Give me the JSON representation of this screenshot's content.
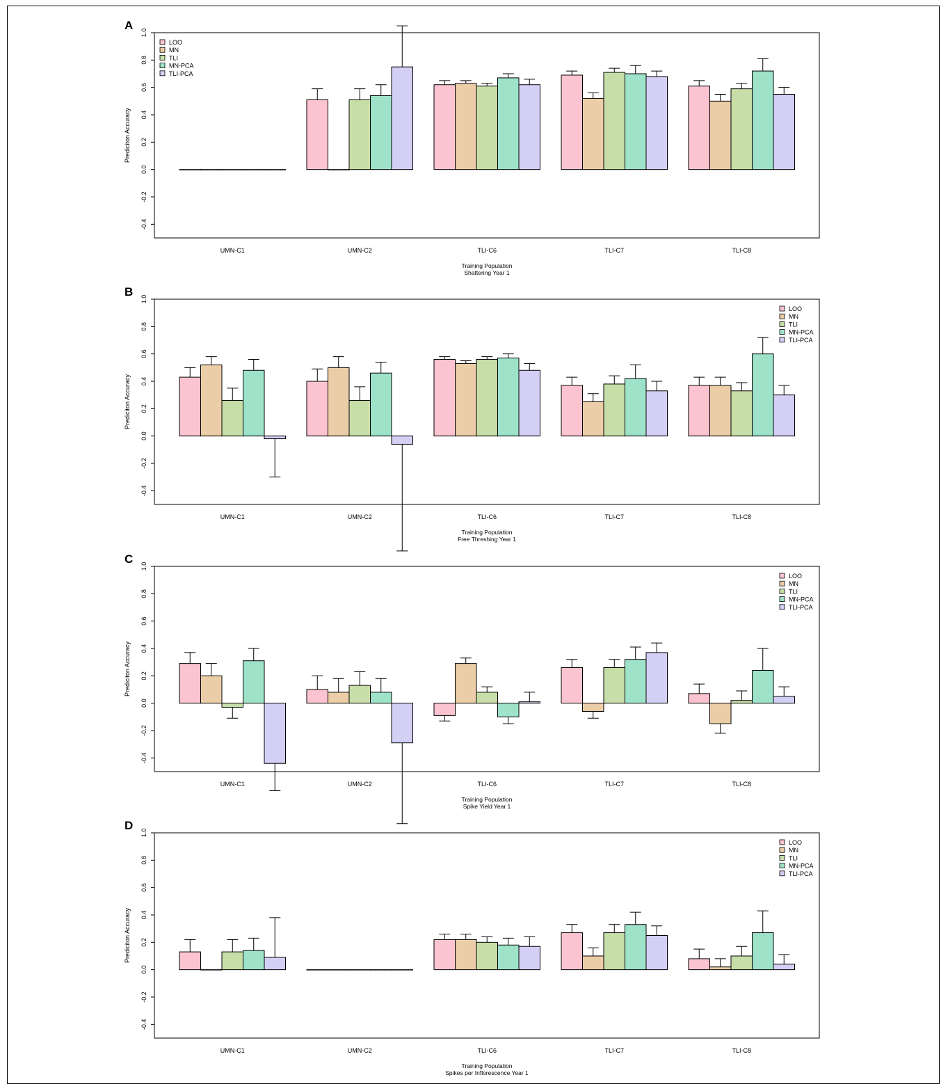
{
  "colors": {
    "LOO": "#fbc4d0",
    "MN": "#ebcda8",
    "TLI": "#c8dea8",
    "MN-PCA": "#9ee3c9",
    "TLI-PCA": "#d3cff5"
  },
  "chart_data": [
    {
      "type": "bar",
      "panel_letter": "A",
      "categories": [
        "UMN-C1",
        "UMN-C2",
        "TLI-C6",
        "TLI-C7",
        "TLI-C8"
      ],
      "xlabel": "Training Population",
      "subtitle": "Shattering Year 1",
      "ylabel": "Prediciton Accuracy",
      "ylim": [
        -0.5,
        1.0
      ],
      "yticks": [
        "1.0",
        "0.8",
        "0.6",
        "0.4",
        "0.2",
        "0.0",
        "-0.2",
        "-0.4"
      ],
      "legend_position": "top-left",
      "series": [
        {
          "name": "LOO",
          "values": [
            0.0,
            0.51,
            0.62,
            0.69,
            0.61
          ],
          "errors": [
            0.0,
            0.08,
            0.03,
            0.03,
            0.04
          ]
        },
        {
          "name": "MN",
          "values": [
            0.0,
            0.0,
            0.63,
            0.52,
            0.5
          ],
          "errors": [
            0.0,
            0.0,
            0.02,
            0.04,
            0.05
          ]
        },
        {
          "name": "TLI",
          "values": [
            0.0,
            0.51,
            0.61,
            0.71,
            0.59
          ],
          "errors": [
            0.0,
            0.08,
            0.02,
            0.03,
            0.04
          ]
        },
        {
          "name": "MN-PCA",
          "values": [
            0.0,
            0.54,
            0.67,
            0.7,
            0.72
          ],
          "errors": [
            0.0,
            0.08,
            0.03,
            0.06,
            0.09
          ]
        },
        {
          "name": "TLI-PCA",
          "values": [
            0.0,
            0.75,
            0.62,
            0.68,
            0.55
          ],
          "errors": [
            0.0,
            0.3,
            0.04,
            0.04,
            0.05
          ]
        }
      ]
    },
    {
      "type": "bar",
      "panel_letter": "B",
      "categories": [
        "UMN-C1",
        "UMN-C2",
        "TLI-C6",
        "TLI-C7",
        "TLI-C8"
      ],
      "xlabel": "Training Population",
      "subtitle": "Free Threshing Year 1",
      "ylabel": "Prediciton Accuracy",
      "ylim": [
        -0.5,
        1.0
      ],
      "yticks": [
        "1.0",
        "0.8",
        "0.6",
        "0.4",
        "0.2",
        "0.0",
        "-0.2",
        "-0.4"
      ],
      "legend_position": "top-right",
      "series": [
        {
          "name": "LOO",
          "values": [
            0.43,
            0.4,
            0.56,
            0.37,
            0.37
          ],
          "errors": [
            0.07,
            0.09,
            0.02,
            0.06,
            0.06
          ]
        },
        {
          "name": "MN",
          "values": [
            0.52,
            0.5,
            0.53,
            0.25,
            0.37
          ],
          "errors": [
            0.06,
            0.08,
            0.02,
            0.06,
            0.06
          ]
        },
        {
          "name": "TLI",
          "values": [
            0.26,
            0.26,
            0.56,
            0.38,
            0.33
          ],
          "errors": [
            0.09,
            0.1,
            0.02,
            0.06,
            0.06
          ]
        },
        {
          "name": "MN-PCA",
          "values": [
            0.48,
            0.46,
            0.57,
            0.42,
            0.6
          ],
          "errors": [
            0.08,
            0.08,
            0.03,
            0.1,
            0.12
          ]
        },
        {
          "name": "TLI-PCA",
          "values": [
            -0.02,
            -0.06,
            0.48,
            0.33,
            0.3
          ],
          "errors": [
            0.28,
            0.78,
            0.05,
            0.07,
            0.07
          ]
        }
      ]
    },
    {
      "type": "bar",
      "panel_letter": "C",
      "categories": [
        "UMN-C1",
        "UMN-C2",
        "TLI-C6",
        "TLI-C7",
        "TLI-C8"
      ],
      "xlabel": "Training Population",
      "subtitle": "Spike Yield Year 1",
      "ylabel": "Prediciton Accuracy",
      "ylim": [
        -0.5,
        1.0
      ],
      "yticks": [
        "1.0",
        "0.8",
        "0.6",
        "0.4",
        "0.2",
        "0.0",
        "-0.2",
        "-0.4"
      ],
      "legend_position": "top-right",
      "series": [
        {
          "name": "LOO",
          "values": [
            0.29,
            0.1,
            -0.09,
            0.26,
            0.07
          ],
          "errors": [
            0.08,
            0.1,
            0.04,
            0.06,
            0.07
          ]
        },
        {
          "name": "MN",
          "values": [
            0.2,
            0.08,
            0.29,
            -0.06,
            -0.15
          ],
          "errors": [
            0.09,
            0.1,
            0.04,
            0.05,
            0.07
          ]
        },
        {
          "name": "TLI",
          "values": [
            -0.03,
            0.13,
            0.08,
            0.26,
            0.02
          ],
          "errors": [
            0.08,
            0.1,
            0.04,
            0.06,
            0.07
          ]
        },
        {
          "name": "MN-PCA",
          "values": [
            0.31,
            0.08,
            -0.1,
            0.32,
            0.24
          ],
          "errors": [
            0.09,
            0.1,
            0.05,
            0.09,
            0.16
          ]
        },
        {
          "name": "TLI-PCA",
          "values": [
            -0.44,
            -0.29,
            0.01,
            0.37,
            0.05
          ],
          "errors": [
            0.2,
            0.59,
            0.07,
            0.07,
            0.07
          ]
        }
      ]
    },
    {
      "type": "bar",
      "panel_letter": "D",
      "categories": [
        "UMN-C1",
        "UMN-C2",
        "TLI-C6",
        "TLI-C7",
        "TLI-C8"
      ],
      "xlabel": "Training Population",
      "subtitle": "Spikes per Inflorescence Year 1",
      "ylabel": "Prediciton Accuracy",
      "ylim": [
        -0.5,
        1.0
      ],
      "yticks": [
        "1.0",
        "0.8",
        "0.6",
        "0.4",
        "0.2",
        "0.0",
        "-0.2",
        "-0.4"
      ],
      "legend_position": "top-right",
      "series": [
        {
          "name": "LOO",
          "values": [
            0.13,
            0.0,
            0.22,
            0.27,
            0.08
          ],
          "errors": [
            0.09,
            0.0,
            0.04,
            0.06,
            0.07
          ]
        },
        {
          "name": "MN",
          "values": [
            0.0,
            0.0,
            0.22,
            0.1,
            0.02
          ],
          "errors": [
            0.0,
            0.0,
            0.04,
            0.06,
            0.06
          ]
        },
        {
          "name": "TLI",
          "values": [
            0.13,
            0.0,
            0.2,
            0.27,
            0.1
          ],
          "errors": [
            0.09,
            0.0,
            0.04,
            0.06,
            0.07
          ]
        },
        {
          "name": "MN-PCA",
          "values": [
            0.14,
            0.0,
            0.18,
            0.33,
            0.27
          ],
          "errors": [
            0.09,
            0.0,
            0.05,
            0.09,
            0.16
          ]
        },
        {
          "name": "TLI-PCA",
          "values": [
            0.09,
            0.0,
            0.17,
            0.25,
            0.04
          ],
          "errors": [
            0.29,
            0.0,
            0.07,
            0.07,
            0.07
          ]
        }
      ]
    }
  ]
}
